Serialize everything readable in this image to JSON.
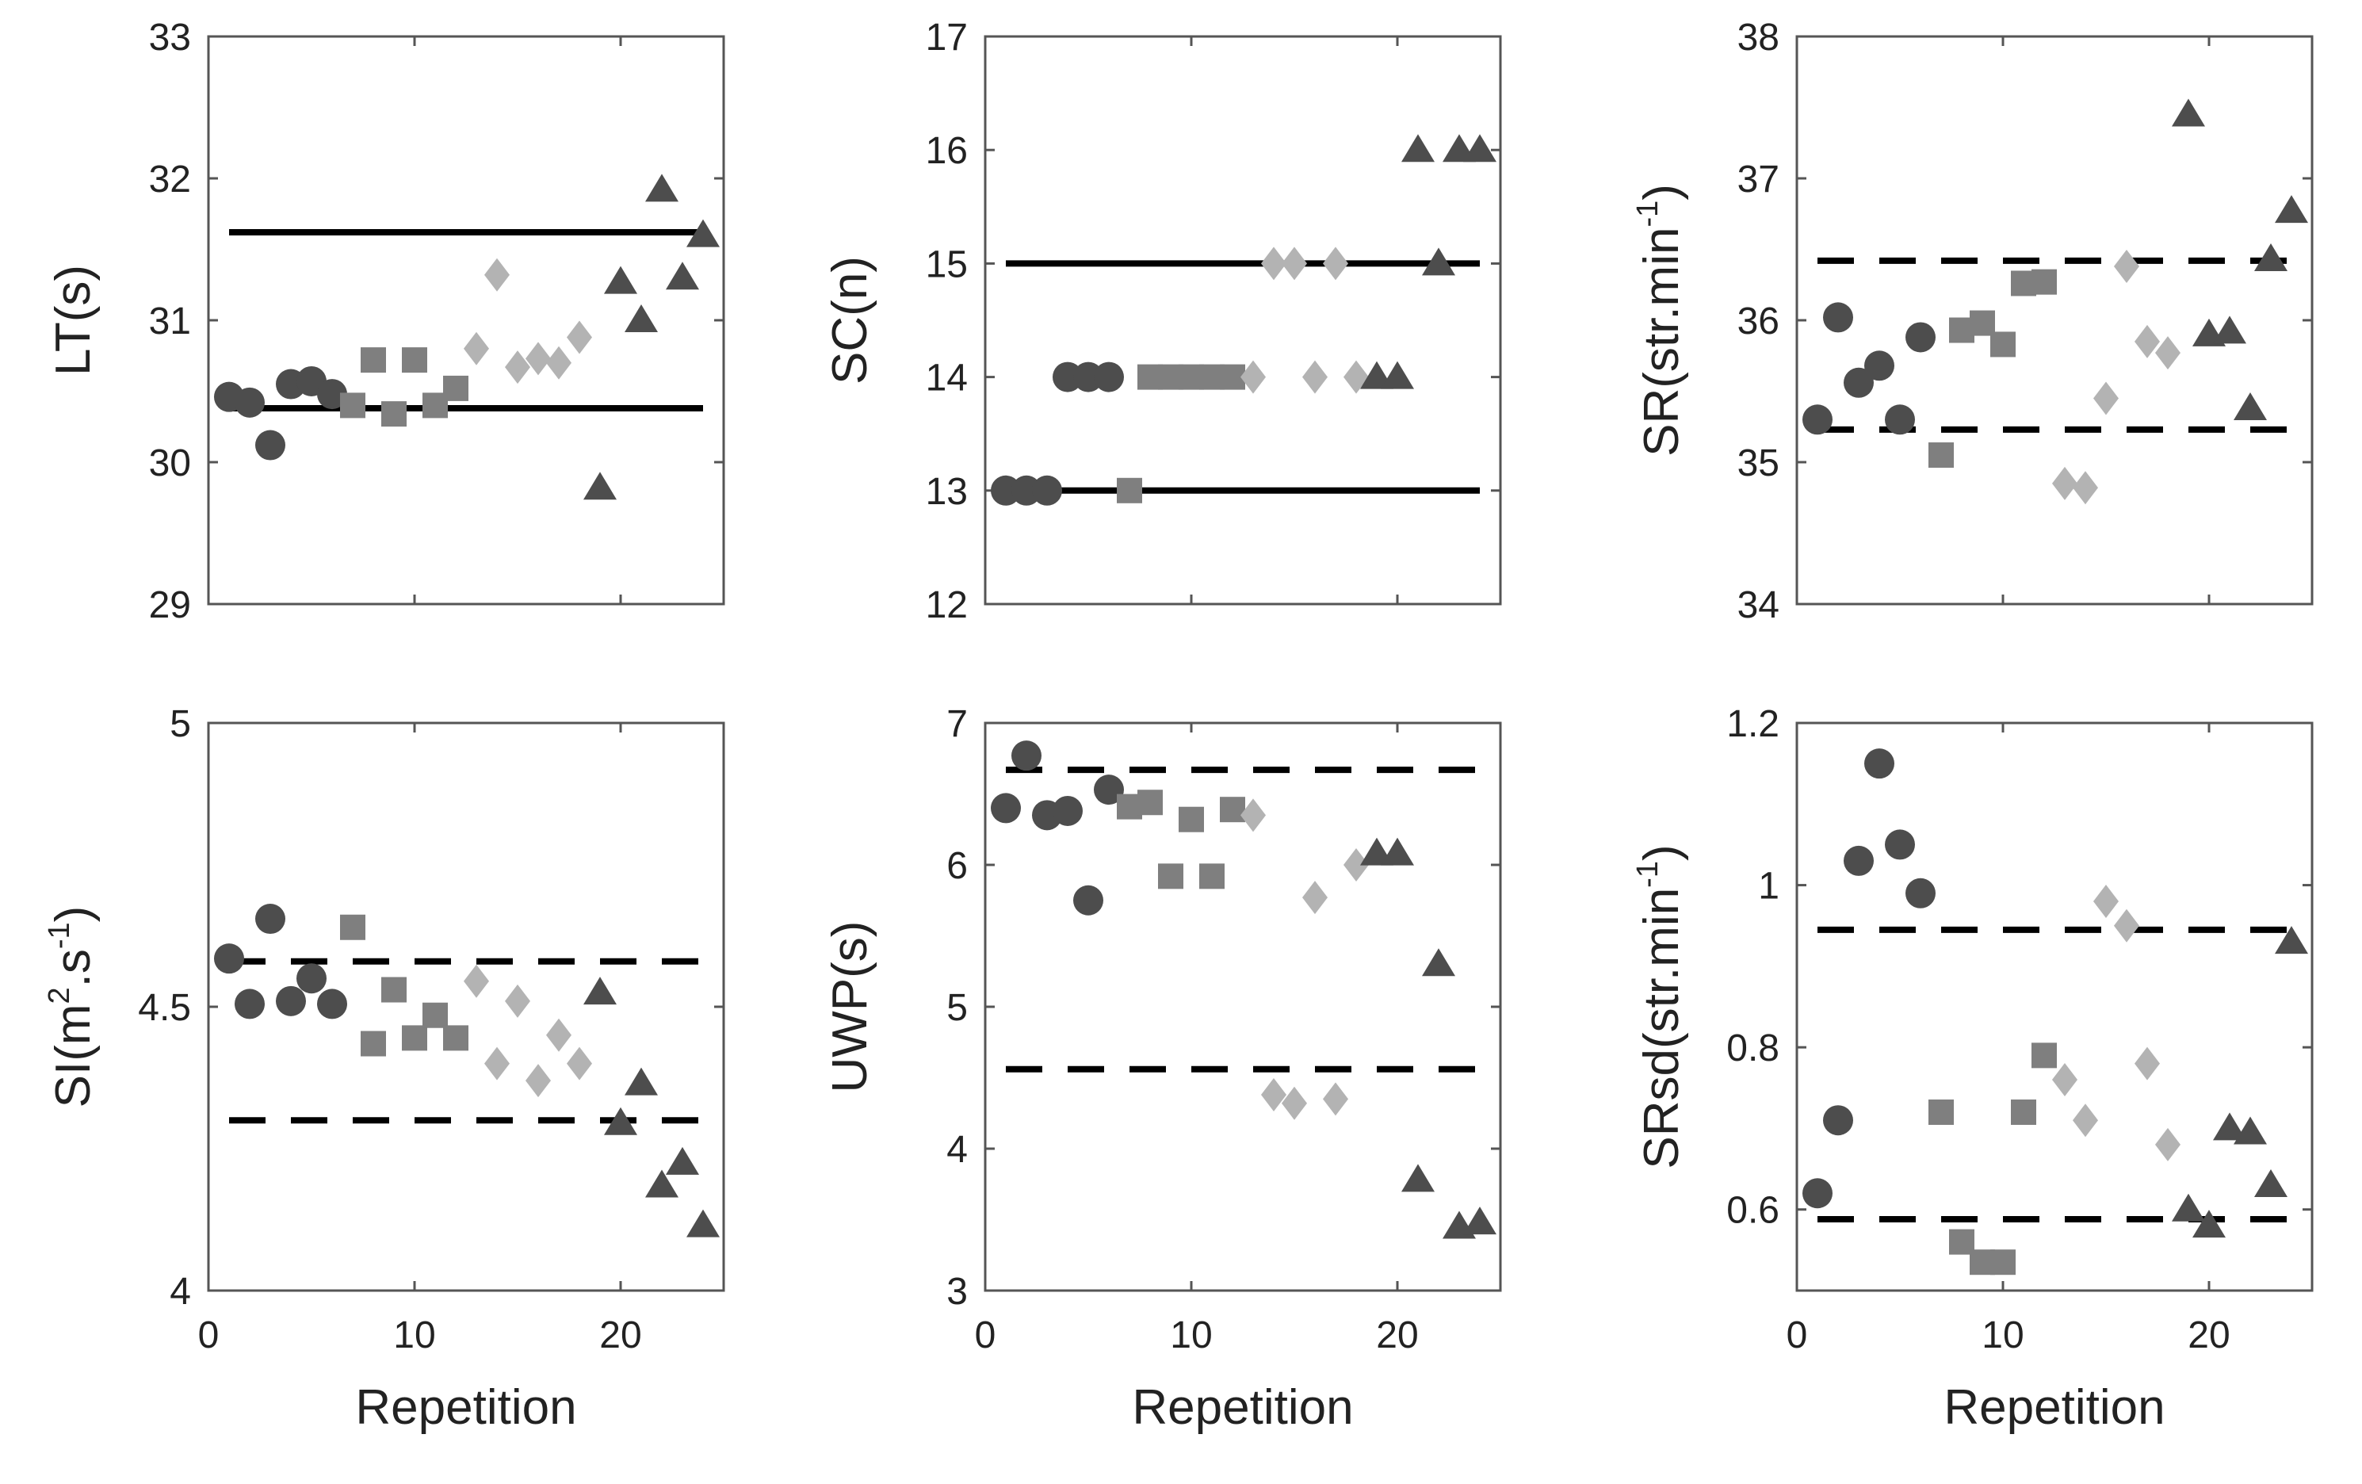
{
  "chart_data": [
    {
      "type": "scatter",
      "ylabel": "LT(s)",
      "xlabel": "",
      "xlim": [
        0,
        25
      ],
      "ylim": [
        29,
        33
      ],
      "xticks": [
        0,
        10,
        20
      ],
      "yticks": [
        29,
        30,
        31,
        32,
        33
      ],
      "xtick_labels_visible": false,
      "limit_lines": {
        "style": "solid",
        "values": [
          31.62,
          30.38
        ],
        "x_range": [
          1,
          24
        ]
      },
      "series": [
        {
          "marker": "circle",
          "color": "#4d4d4d",
          "x": [
            1,
            2,
            3,
            4,
            5,
            6
          ],
          "y": [
            30.46,
            30.42,
            30.12,
            30.55,
            30.57,
            30.48
          ]
        },
        {
          "marker": "square",
          "color": "#7f7f7f",
          "x": [
            7,
            8,
            9,
            10,
            11,
            12
          ],
          "y": [
            30.4,
            30.72,
            30.34,
            30.72,
            30.4,
            30.52
          ]
        },
        {
          "marker": "diamond",
          "color": "#b3b3b3",
          "x": [
            13,
            14,
            15,
            16,
            17,
            18
          ],
          "y": [
            30.8,
            31.32,
            30.67,
            30.73,
            30.7,
            30.88
          ]
        },
        {
          "marker": "triangle",
          "color": "#4d4d4d",
          "x": [
            19,
            20,
            21,
            22,
            23,
            24
          ],
          "y": [
            29.82,
            31.27,
            31.0,
            31.92,
            31.3,
            31.6
          ]
        }
      ]
    },
    {
      "type": "scatter",
      "ylabel": "SC(n)",
      "xlabel": "",
      "xlim": [
        0,
        25
      ],
      "ylim": [
        12,
        17
      ],
      "xticks": [
        0,
        10,
        20
      ],
      "yticks": [
        12,
        13,
        14,
        15,
        16,
        17
      ],
      "xtick_labels_visible": false,
      "limit_lines": {
        "style": "solid",
        "values": [
          15,
          13
        ],
        "x_range": [
          1,
          24
        ]
      },
      "series": [
        {
          "marker": "circle",
          "color": "#4d4d4d",
          "x": [
            1,
            2,
            3,
            4,
            5,
            6
          ],
          "y": [
            13,
            13,
            13,
            14,
            14,
            14
          ]
        },
        {
          "marker": "square",
          "color": "#7f7f7f",
          "x": [
            7,
            8,
            9,
            10,
            11,
            12
          ],
          "y": [
            13,
            14,
            14,
            14,
            14,
            14
          ]
        },
        {
          "marker": "diamond",
          "color": "#b3b3b3",
          "x": [
            13,
            14,
            15,
            16,
            17,
            18
          ],
          "y": [
            14,
            15,
            15,
            14,
            15,
            14
          ]
        },
        {
          "marker": "triangle",
          "color": "#4d4d4d",
          "x": [
            19,
            20,
            21,
            22,
            23,
            24
          ],
          "y": [
            14,
            14,
            16,
            15,
            16,
            16
          ]
        }
      ]
    },
    {
      "type": "scatter",
      "ylabel": "SR(str.min",
      "ylabel_sup": "-1",
      "ylabel_tail": ")",
      "xlabel": "",
      "xlim": [
        0,
        25
      ],
      "ylim": [
        34,
        38
      ],
      "xticks": [
        0,
        10,
        20
      ],
      "yticks": [
        34,
        35,
        36,
        37,
        38
      ],
      "xtick_labels_visible": false,
      "limit_lines": {
        "style": "dashed",
        "values": [
          36.42,
          35.23
        ],
        "x_range": [
          1,
          24
        ]
      },
      "series": [
        {
          "marker": "circle",
          "color": "#4d4d4d",
          "x": [
            1,
            2,
            3,
            4,
            5,
            6
          ],
          "y": [
            35.3,
            36.02,
            35.56,
            35.68,
            35.3,
            35.88
          ]
        },
        {
          "marker": "square",
          "color": "#7f7f7f",
          "x": [
            7,
            8,
            9,
            10,
            11,
            12
          ],
          "y": [
            35.05,
            35.93,
            35.98,
            35.83,
            36.26,
            36.27
          ]
        },
        {
          "marker": "diamond",
          "color": "#b3b3b3",
          "x": [
            13,
            14,
            15,
            16,
            17,
            18
          ],
          "y": [
            34.85,
            34.82,
            35.45,
            36.38,
            35.85,
            35.77
          ]
        },
        {
          "marker": "triangle",
          "color": "#4d4d4d",
          "x": [
            19,
            20,
            21,
            22,
            23,
            24
          ],
          "y": [
            37.45,
            35.9,
            35.92,
            35.38,
            36.43,
            36.77
          ]
        }
      ]
    },
    {
      "type": "scatter",
      "ylabel": "SI(m",
      "ylabel_sup": "2",
      "ylabel_mid": ".s",
      "ylabel_sup2": "-1",
      "ylabel_tail": ")",
      "xlabel": "Repetition",
      "xlim": [
        0,
        25
      ],
      "ylim": [
        4,
        5
      ],
      "xticks": [
        0,
        10,
        20
      ],
      "yticks": [
        4,
        4.5,
        5
      ],
      "xtick_labels_visible": true,
      "limit_lines": {
        "style": "dashed",
        "values": [
          4.58,
          4.3
        ],
        "x_range": [
          1,
          24
        ]
      },
      "series": [
        {
          "marker": "circle",
          "color": "#4d4d4d",
          "x": [
            1,
            2,
            3,
            4,
            5,
            6
          ],
          "y": [
            4.585,
            4.505,
            4.655,
            4.51,
            4.55,
            4.505
          ]
        },
        {
          "marker": "square",
          "color": "#7f7f7f",
          "x": [
            7,
            8,
            9,
            10,
            11,
            12
          ],
          "y": [
            4.64,
            4.435,
            4.53,
            4.445,
            4.485,
            4.445
          ]
        },
        {
          "marker": "diamond",
          "color": "#b3b3b3",
          "x": [
            13,
            14,
            15,
            16,
            17,
            18
          ],
          "y": [
            4.545,
            4.4,
            4.51,
            4.37,
            4.45,
            4.4
          ]
        },
        {
          "marker": "triangle",
          "color": "#4d4d4d",
          "x": [
            19,
            20,
            21,
            22,
            23,
            24
          ],
          "y": [
            4.525,
            4.295,
            4.365,
            4.185,
            4.225,
            4.115
          ]
        }
      ]
    },
    {
      "type": "scatter",
      "ylabel": "UWP(s)",
      "xlabel": "Repetition",
      "xlim": [
        0,
        25
      ],
      "ylim": [
        3,
        7
      ],
      "xticks": [
        0,
        10,
        20
      ],
      "yticks": [
        3,
        4,
        5,
        6,
        7
      ],
      "xtick_labels_visible": true,
      "limit_lines": {
        "style": "dashed",
        "values": [
          6.67,
          4.56
        ],
        "x_range": [
          1,
          24
        ]
      },
      "series": [
        {
          "marker": "circle",
          "color": "#4d4d4d",
          "x": [
            1,
            2,
            3,
            4,
            5,
            6
          ],
          "y": [
            6.4,
            6.77,
            6.35,
            6.38,
            5.75,
            6.53
          ]
        },
        {
          "marker": "square",
          "color": "#7f7f7f",
          "x": [
            7,
            8,
            9,
            10,
            11,
            12
          ],
          "y": [
            6.41,
            6.44,
            5.92,
            6.32,
            5.92,
            6.39
          ]
        },
        {
          "marker": "diamond",
          "color": "#b3b3b3",
          "x": [
            13,
            14,
            15,
            16,
            17,
            18
          ],
          "y": [
            6.35,
            4.38,
            4.32,
            5.77,
            4.35,
            6.0
          ]
        },
        {
          "marker": "triangle",
          "color": "#4d4d4d",
          "x": [
            19,
            20,
            21,
            22,
            23,
            24
          ],
          "y": [
            6.08,
            6.08,
            3.78,
            5.3,
            3.45,
            3.48
          ]
        }
      ]
    },
    {
      "type": "scatter",
      "ylabel": "SRsd(str.min",
      "ylabel_sup": "-1",
      "ylabel_tail": ")",
      "xlabel": "Repetition",
      "xlim": [
        0,
        25
      ],
      "ylim": [
        0.5,
        1.2
      ],
      "xticks": [
        0,
        10,
        20
      ],
      "yticks": [
        0.6,
        0.8,
        1,
        1.2
      ],
      "xtick_labels_visible": true,
      "limit_lines": {
        "style": "dashed",
        "values": [
          0.945,
          0.588
        ],
        "x_range": [
          1,
          24
        ]
      },
      "series": [
        {
          "marker": "circle",
          "color": "#4d4d4d",
          "x": [
            1,
            2,
            3,
            4,
            5,
            6
          ],
          "y": [
            0.62,
            0.71,
            1.03,
            1.15,
            1.05,
            0.99
          ]
        },
        {
          "marker": "square",
          "color": "#7f7f7f",
          "x": [
            7,
            8,
            9,
            10,
            11,
            12
          ],
          "y": [
            0.72,
            0.56,
            0.535,
            0.535,
            0.72,
            0.79
          ]
        },
        {
          "marker": "diamond",
          "color": "#b3b3b3",
          "x": [
            13,
            14,
            15,
            16,
            17,
            18
          ],
          "y": [
            0.76,
            0.71,
            0.98,
            0.95,
            0.78,
            0.68
          ]
        },
        {
          "marker": "triangle",
          "color": "#4d4d4d",
          "x": [
            19,
            20,
            21,
            22,
            23,
            24
          ],
          "y": [
            0.6,
            0.58,
            0.7,
            0.695,
            0.63,
            0.93
          ]
        }
      ]
    }
  ]
}
